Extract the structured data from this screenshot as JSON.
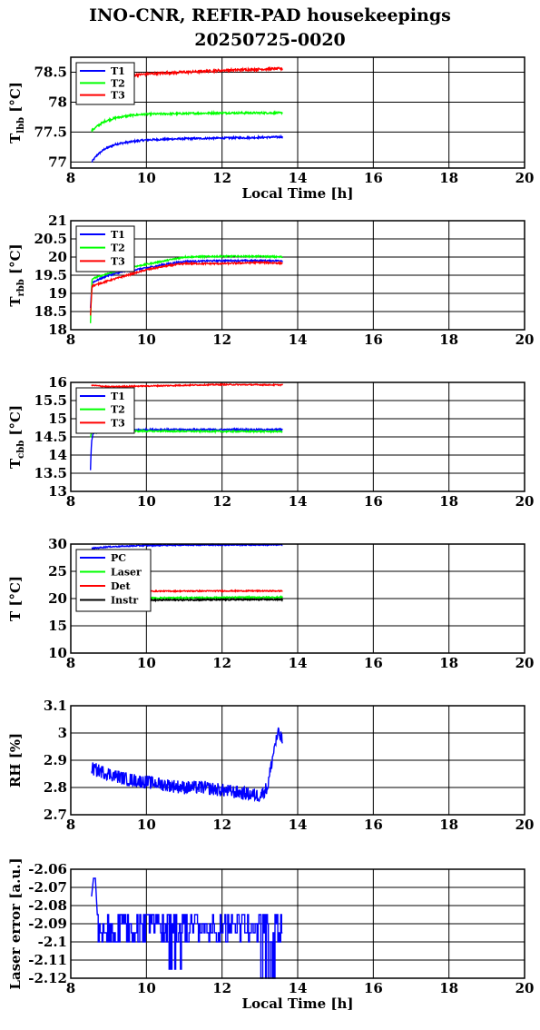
{
  "title": {
    "line1": "INO-CNR, REFIR-PAD housekeepings",
    "line2": "20250725-0020"
  },
  "chart_data": [
    {
      "id": "p1",
      "type": "line",
      "title": "",
      "ylabel": "T_lbb [°C]",
      "ylabel_main": "T",
      "ylabel_sub": "lbb",
      "ylabel_tail": " [°C]",
      "xlabel": "Local Time [h]",
      "xlim": [
        8,
        20
      ],
      "ylim": [
        76.9,
        78.75
      ],
      "xticks": [
        8,
        10,
        12,
        14,
        16,
        18,
        20
      ],
      "yticks": [
        77,
        77.5,
        78,
        78.5
      ],
      "yticklabels": [
        "77",
        "77.5",
        "78",
        "78.5"
      ],
      "grid": true,
      "legend": "top-left",
      "series": [
        {
          "name": "T1",
          "color": "#0000ff",
          "noise": 0.015,
          "points": [
            [
              8.55,
              77.0
            ],
            [
              8.7,
              77.12
            ],
            [
              8.9,
              77.22
            ],
            [
              9.2,
              77.3
            ],
            [
              9.6,
              77.34
            ],
            [
              10.0,
              77.37
            ],
            [
              11.0,
              77.39
            ],
            [
              12.0,
              77.4
            ],
            [
              13.0,
              77.41
            ],
            [
              13.6,
              77.42
            ]
          ]
        },
        {
          "name": "T2",
          "color": "#00ff00",
          "noise": 0.015,
          "points": [
            [
              8.55,
              77.52
            ],
            [
              8.7,
              77.6
            ],
            [
              8.9,
              77.68
            ],
            [
              9.2,
              77.74
            ],
            [
              9.6,
              77.78
            ],
            [
              10.0,
              77.8
            ],
            [
              11.0,
              77.81
            ],
            [
              12.0,
              77.82
            ],
            [
              13.0,
              77.82
            ],
            [
              13.6,
              77.82
            ]
          ]
        },
        {
          "name": "T3",
          "color": "#ff0000",
          "noise": 0.02,
          "points": [
            [
              9.05,
              78.45
            ],
            [
              9.5,
              78.44
            ],
            [
              10.0,
              78.47
            ],
            [
              11.0,
              78.5
            ],
            [
              12.0,
              78.53
            ],
            [
              13.0,
              78.55
            ],
            [
              13.6,
              78.56
            ]
          ]
        }
      ]
    },
    {
      "id": "p2",
      "type": "line",
      "title": "",
      "ylabel": "T_rbb [°C]",
      "ylabel_main": "T",
      "ylabel_sub": "rbb",
      "ylabel_tail": " [°C]",
      "xlabel": "",
      "xlim": [
        8,
        20
      ],
      "ylim": [
        18,
        21
      ],
      "xticks": [
        8,
        10,
        12,
        14,
        16,
        18,
        20
      ],
      "yticks": [
        18,
        18.5,
        19,
        19.5,
        20,
        20.5,
        21
      ],
      "yticklabels": [
        "18",
        "18.5",
        "19",
        "19.5",
        "20",
        "20.5",
        "21"
      ],
      "grid": true,
      "legend": "top-left",
      "series": [
        {
          "name": "T1",
          "color": "#0000ff",
          "noise": 0.02,
          "points": [
            [
              8.52,
              18.6
            ],
            [
              8.56,
              19.3
            ],
            [
              9.0,
              19.5
            ],
            [
              9.5,
              19.62
            ],
            [
              10.0,
              19.7
            ],
            [
              10.5,
              19.8
            ],
            [
              11.0,
              19.88
            ],
            [
              12.0,
              19.9
            ],
            [
              13.0,
              19.9
            ],
            [
              13.6,
              19.9
            ]
          ]
        },
        {
          "name": "T2",
          "color": "#00ff00",
          "noise": 0.02,
          "points": [
            [
              8.52,
              18.2
            ],
            [
              8.56,
              19.4
            ],
            [
              9.0,
              19.55
            ],
            [
              9.5,
              19.7
            ],
            [
              10.0,
              19.8
            ],
            [
              10.5,
              19.9
            ],
            [
              11.0,
              20.0
            ],
            [
              12.0,
              20.02
            ],
            [
              13.0,
              20.02
            ],
            [
              13.6,
              20.0
            ]
          ]
        },
        {
          "name": "T3",
          "color": "#ff0000",
          "noise": 0.02,
          "points": [
            [
              8.52,
              18.4
            ],
            [
              8.56,
              19.2
            ],
            [
              9.0,
              19.35
            ],
            [
              9.5,
              19.5
            ],
            [
              10.0,
              19.65
            ],
            [
              10.5,
              19.75
            ],
            [
              11.0,
              19.82
            ],
            [
              12.0,
              19.82
            ],
            [
              13.0,
              19.85
            ],
            [
              13.6,
              19.83
            ]
          ]
        }
      ]
    },
    {
      "id": "p3",
      "type": "line",
      "title": "",
      "ylabel": "T_cbb [°C]",
      "ylabel_main": "T",
      "ylabel_sub": "cbb",
      "ylabel_tail": " [°C]",
      "xlabel": "",
      "xlim": [
        8,
        20
      ],
      "ylim": [
        13,
        16
      ],
      "xticks": [
        8,
        10,
        12,
        14,
        16,
        18,
        20
      ],
      "yticks": [
        13,
        13.5,
        14,
        14.5,
        15,
        15.5,
        16
      ],
      "yticklabels": [
        "13",
        "13.5",
        "14",
        "14.5",
        "15",
        "15.5",
        "16"
      ],
      "grid": true,
      "legend": "top-left",
      "series": [
        {
          "name": "T1",
          "color": "#0000ff",
          "noise": 0.02,
          "points": [
            [
              8.52,
              13.6
            ],
            [
              8.55,
              14.4
            ],
            [
              8.6,
              14.62
            ],
            [
              9.0,
              14.68
            ],
            [
              10.0,
              14.7
            ],
            [
              12.0,
              14.7
            ],
            [
              13.6,
              14.7
            ]
          ]
        },
        {
          "name": "T2",
          "color": "#00ff00",
          "noise": 0.02,
          "points": [
            [
              8.52,
              14.5
            ],
            [
              8.55,
              14.62
            ],
            [
              9.0,
              14.66
            ],
            [
              10.0,
              14.66
            ],
            [
              12.0,
              14.65
            ],
            [
              13.6,
              14.65
            ]
          ]
        },
        {
          "name": "T3",
          "color": "#ff0000",
          "noise": 0.015,
          "points": [
            [
              8.55,
              15.92
            ],
            [
              9.0,
              15.88
            ],
            [
              10.0,
              15.9
            ],
            [
              11.0,
              15.92
            ],
            [
              12.0,
              15.94
            ],
            [
              13.6,
              15.93
            ]
          ]
        }
      ]
    },
    {
      "id": "p4",
      "type": "line",
      "title": "",
      "ylabel": "T [°C]",
      "ylabel_main": "T [°C]",
      "ylabel_sub": "",
      "ylabel_tail": "",
      "xlabel": "",
      "xlim": [
        8,
        20
      ],
      "ylim": [
        10,
        30
      ],
      "xticks": [
        8,
        10,
        12,
        14,
        16,
        18,
        20
      ],
      "yticks": [
        10,
        15,
        20,
        25,
        30
      ],
      "yticklabels": [
        "10",
        "15",
        "20",
        "25",
        "30"
      ],
      "grid": true,
      "legend": "top-left",
      "series": [
        {
          "name": "PC",
          "color": "#0000ff",
          "noise": 0.1,
          "points": [
            [
              8.55,
              29.2
            ],
            [
              9.0,
              29.5
            ],
            [
              10.0,
              29.75
            ],
            [
              11.0,
              29.82
            ],
            [
              12.0,
              29.85
            ],
            [
              13.6,
              29.85
            ]
          ]
        },
        {
          "name": "Laser",
          "color": "#00ff00",
          "noise": 0.12,
          "points": [
            [
              8.55,
              19.8
            ],
            [
              10.0,
              20.1
            ],
            [
              12.0,
              20.2
            ],
            [
              13.6,
              20.25
            ]
          ]
        },
        {
          "name": "Det",
          "color": "#ff0000",
          "noise": 0.1,
          "points": [
            [
              8.55,
              21.2
            ],
            [
              10.0,
              21.35
            ],
            [
              12.0,
              21.4
            ],
            [
              13.6,
              21.4
            ]
          ]
        },
        {
          "name": "Instr",
          "color": "#000000",
          "noise": 0.12,
          "points": [
            [
              8.55,
              19.4
            ],
            [
              10.0,
              19.7
            ],
            [
              12.0,
              19.78
            ],
            [
              13.6,
              19.8
            ]
          ]
        }
      ]
    },
    {
      "id": "p5",
      "type": "line",
      "title": "",
      "ylabel": "RH [%]",
      "ylabel_main": "RH [%]",
      "ylabel_sub": "",
      "ylabel_tail": "",
      "xlabel": "",
      "xlim": [
        8,
        20
      ],
      "ylim": [
        2.7,
        3.1
      ],
      "xticks": [
        8,
        10,
        12,
        14,
        16,
        18,
        20
      ],
      "yticks": [
        2.7,
        2.8,
        2.9,
        3,
        3.1
      ],
      "yticklabels": [
        "2.7",
        "2.8",
        "2.9",
        "3",
        "3.1"
      ],
      "grid": true,
      "legend": "none",
      "series": [
        {
          "name": "",
          "color": "#0000ff",
          "noise": 0.025,
          "points": [
            [
              8.55,
              2.87
            ],
            [
              9.0,
              2.85
            ],
            [
              9.5,
              2.83
            ],
            [
              10.0,
              2.82
            ],
            [
              10.5,
              2.81
            ],
            [
              11.0,
              2.8
            ],
            [
              11.5,
              2.8
            ],
            [
              12.0,
              2.79
            ],
            [
              12.5,
              2.78
            ],
            [
              13.0,
              2.77
            ],
            [
              13.2,
              2.8
            ],
            [
              13.3,
              2.88
            ],
            [
              13.4,
              2.96
            ],
            [
              13.5,
              3.0
            ],
            [
              13.6,
              2.97
            ]
          ]
        }
      ]
    },
    {
      "id": "p6",
      "type": "line",
      "title": "",
      "ylabel": "Laser error [a.u.]",
      "ylabel_main": "Laser error [a.u.]",
      "ylabel_sub": "",
      "ylabel_tail": "",
      "xlabel": "Local Time [h]",
      "xlim": [
        8,
        20
      ],
      "ylim": [
        -2.12,
        -2.06
      ],
      "xticks": [
        8,
        10,
        12,
        14,
        16,
        18,
        20
      ],
      "yticks": [
        -2.12,
        -2.11,
        -2.1,
        -2.09,
        -2.08,
        -2.07,
        -2.06
      ],
      "yticklabels": [
        "-2.12",
        "-2.11",
        "-2.1",
        "-2.09",
        "-2.08",
        "-2.07",
        "-2.06"
      ],
      "grid": true,
      "legend": "none",
      "series": [
        {
          "name": "",
          "color": "#0000ff",
          "noise": 0,
          "levels": [
            -2.095,
            -2.09,
            -2.085,
            -2.1
          ],
          "points": [
            [
              8.55,
              -2.075
            ],
            [
              8.6,
              -2.065
            ],
            [
              8.65,
              -2.065
            ],
            [
              8.7,
              -2.085
            ]
          ]
        }
      ]
    }
  ]
}
